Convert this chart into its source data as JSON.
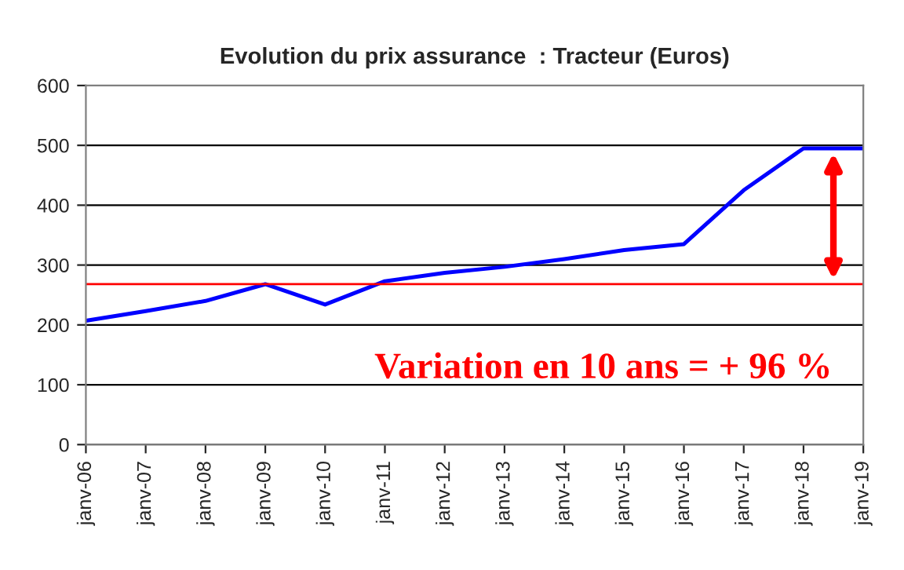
{
  "chart_data": {
    "type": "line",
    "title": "Evolution du prix assurance  : Tracteur (Euros)",
    "categories": [
      "janv-06",
      "janv-07",
      "janv-08",
      "janv-09",
      "janv-10",
      "janv-11",
      "janv-12",
      "janv-13",
      "janv-14",
      "janv-15",
      "janv-16",
      "janv-17",
      "janv-18",
      "janv-19"
    ],
    "series": [
      {
        "color": "#0000ff",
        "values": [
          207,
          223,
          240,
          268,
          234,
          273,
          287,
          297,
          310,
          325,
          335,
          425,
          495,
          495
        ]
      }
    ],
    "ylim": [
      0,
      600
    ],
    "yticks": [
      0,
      100,
      200,
      300,
      400,
      500,
      600
    ],
    "grid": "y",
    "legend": false,
    "marker": "none",
    "line_style": "solid",
    "ref_lines": [
      {
        "axis": "y",
        "value": 268,
        "color": "#ff0000"
      }
    ],
    "annotations": [
      "Variation en 10 ans = + 96 %"
    ]
  }
}
